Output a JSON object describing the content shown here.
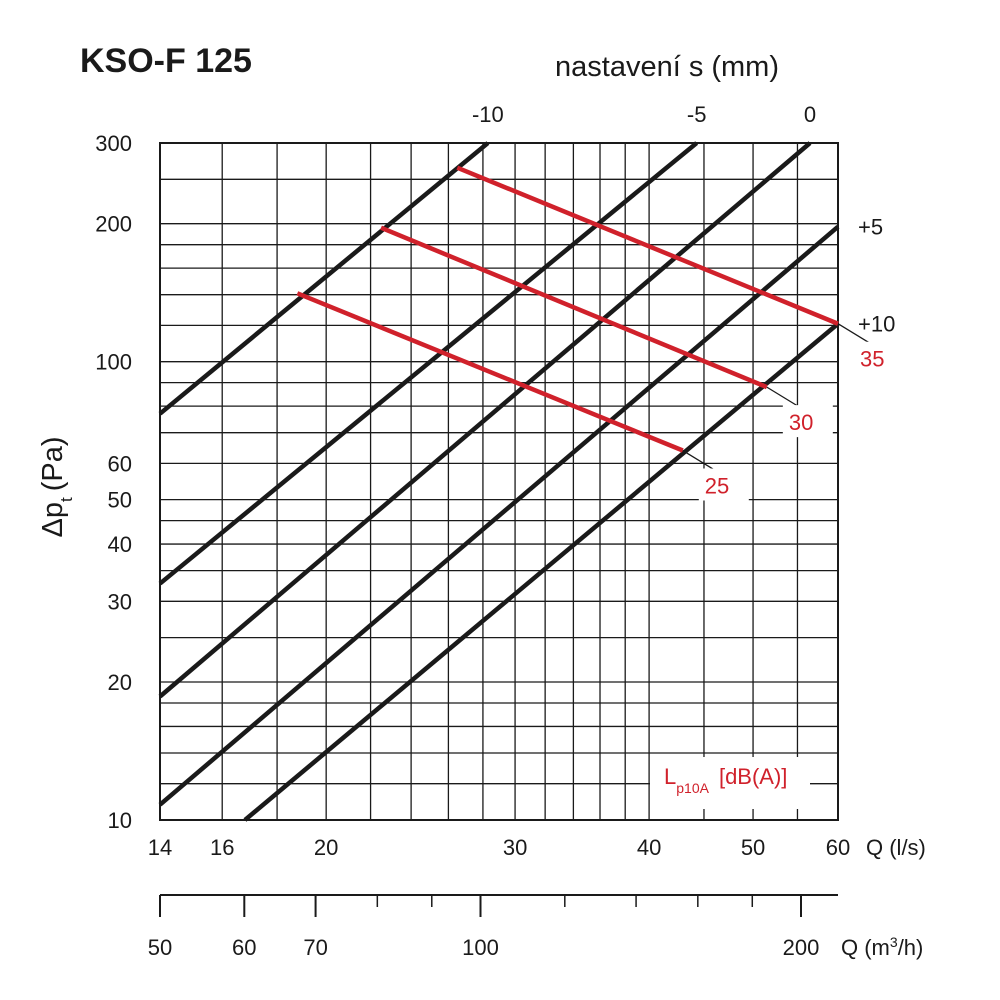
{
  "chart_data": {
    "type": "line",
    "title": "KSO-F 125",
    "top_axis_label": "nastavení s (mm)",
    "ylabel": "Δp",
    "ylabel_sub": "t",
    "ylabel_unit": "(Pa)",
    "xlabel": "Q (l/s)",
    "x2label": "Q (m³/h)",
    "x2label_pre": "Q (m",
    "x2label_sup": "3",
    "x2label_post": "/h)",
    "x_scale": "log",
    "y_scale": "log",
    "xlim": [
      14,
      60
    ],
    "ylim": [
      10,
      300
    ],
    "grid": true,
    "x_ticks": [
      14,
      16,
      20,
      30,
      40,
      50,
      60
    ],
    "x_minor_ticks": [
      18,
      22,
      24,
      26,
      28,
      32,
      34,
      36,
      38,
      45,
      55
    ],
    "y_ticks": [
      10,
      20,
      30,
      40,
      50,
      60,
      100,
      200,
      300
    ],
    "y_minor_ticks": [
      12,
      14,
      16,
      18,
      25,
      35,
      45,
      70,
      80,
      90,
      120,
      140,
      160,
      180,
      250
    ],
    "x2_ticks": [
      50,
      60,
      70,
      100,
      200
    ],
    "x2_minor_ticks": [
      80,
      90,
      120,
      140,
      160,
      180
    ],
    "colors": {
      "settings": "#1a1a1a",
      "noise": "#d0212b"
    },
    "setting_series": [
      {
        "name": "-10",
        "label_pos": "top",
        "points": [
          [
            14,
            77
          ],
          [
            28.3,
            300
          ]
        ]
      },
      {
        "name": "-5",
        "label_pos": "top",
        "points": [
          [
            14,
            32.8
          ],
          [
            44.3,
            300
          ]
        ]
      },
      {
        "name": "0",
        "label_pos": "top",
        "points": [
          [
            14,
            18.6
          ],
          [
            56.5,
            300
          ]
        ]
      },
      {
        "name": "+5",
        "label_pos": "right",
        "points": [
          [
            14,
            10.8
          ],
          [
            60,
            197
          ]
        ]
      },
      {
        "name": "+10",
        "label_pos": "right",
        "points": [
          [
            16.8,
            10
          ],
          [
            60,
            121
          ]
        ]
      }
    ],
    "noise_legend": {
      "main": "L",
      "sub": "p10A",
      "unit": "[dB(A)]"
    },
    "noise_series": [
      {
        "name": "35",
        "points": [
          [
            26.5,
            265
          ],
          [
            60,
            121
          ]
        ]
      },
      {
        "name": "30",
        "points": [
          [
            22.5,
            196
          ],
          [
            51.5,
            88
          ]
        ]
      },
      {
        "name": "25",
        "points": [
          [
            18.8,
            141
          ],
          [
            43.0,
            64
          ]
        ]
      }
    ]
  }
}
